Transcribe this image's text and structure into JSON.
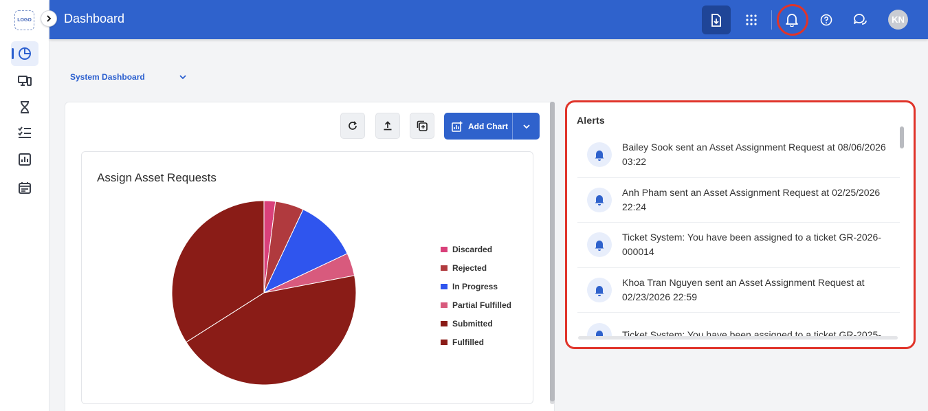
{
  "app": {
    "logo_text": "LOGO"
  },
  "header": {
    "title": "Dashboard",
    "avatar_initials": "KN"
  },
  "dashboard_selector": {
    "selected": "System Dashboard"
  },
  "toolbar": {
    "add_chart_label": "Add Chart"
  },
  "chart": {
    "title": "Assign Asset Requests"
  },
  "chart_data": {
    "type": "pie",
    "title": "Assign Asset Requests",
    "legend_position": "right",
    "categories": [
      "Discarded",
      "Rejected",
      "In Progress",
      "Partial Fulfilled",
      "Submitted",
      "Fulfilled"
    ],
    "values": [
      2,
      5,
      11,
      4,
      44,
      34
    ],
    "colors": [
      "#d9407a",
      "#b03a3e",
      "#2f55ee",
      "#d85a7d",
      "#8a1c17",
      "#8a1c17"
    ]
  },
  "alerts": {
    "title": "Alerts",
    "items": [
      {
        "text": "Bailey Sook sent an Asset Assignment Request at 08/06/2026 03:22"
      },
      {
        "text": "Anh Pham sent an Asset Assignment Request at 02/25/2026 22:24"
      },
      {
        "text": "Ticket System: You have been assigned to a ticket GR-2026-000014"
      },
      {
        "text": "Khoa Tran Nguyen sent an Asset Assignment Request at 02/23/2026 22:59"
      },
      {
        "text": "Ticket System: You have been assigned to a ticket GR-2025-"
      }
    ]
  },
  "colors": {
    "primary": "#2f62cc",
    "highlight": "#e0342a"
  }
}
